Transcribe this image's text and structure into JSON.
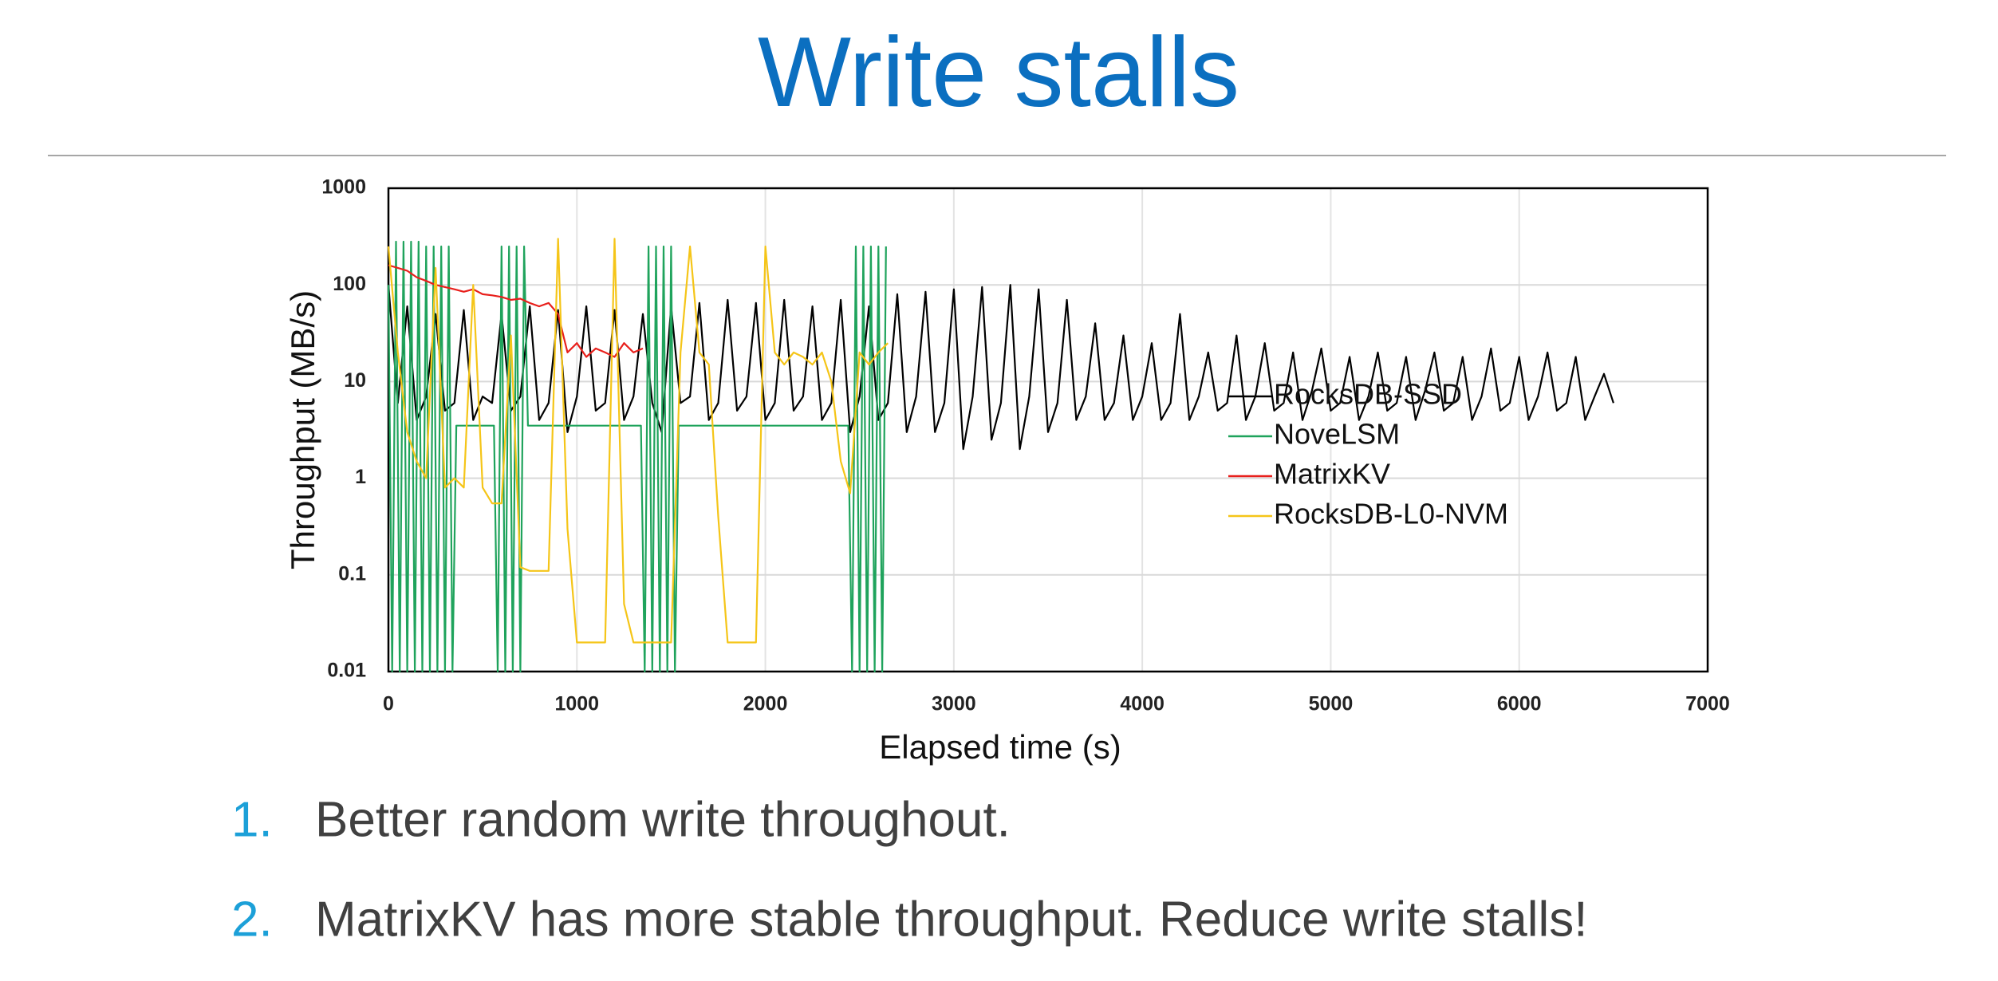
{
  "slide_title": "Write stalls",
  "chart_data": {
    "type": "line",
    "x_label": "Elapsed time (s)",
    "y_label": "Throughput (MB/s)",
    "log_y": true,
    "grid": true,
    "legend": "lower right",
    "xlim": [
      0,
      7000
    ],
    "xticks": [
      0,
      1000,
      2000,
      3000,
      4000,
      5000,
      6000,
      7000
    ],
    "ylim": [
      0.01,
      1000
    ],
    "yticks": [
      0.01,
      0.1,
      1,
      10,
      100,
      1000
    ],
    "series": [
      {
        "name": "RocksDB-SSD",
        "color": "#000000",
        "x": [
          0,
          50,
          100,
          150,
          200,
          250,
          300,
          350,
          400,
          450,
          500,
          550,
          600,
          650,
          700,
          750,
          800,
          850,
          900,
          950,
          1000,
          1050,
          1100,
          1150,
          1200,
          1250,
          1300,
          1350,
          1400,
          1450,
          1500,
          1550,
          1600,
          1650,
          1700,
          1750,
          1800,
          1850,
          1900,
          1950,
          2000,
          2050,
          2100,
          2150,
          2200,
          2250,
          2300,
          2350,
          2400,
          2450,
          2500,
          2550,
          2600,
          2650,
          2700,
          2750,
          2800,
          2850,
          2900,
          2950,
          3000,
          3050,
          3100,
          3150,
          3200,
          3250,
          3300,
          3350,
          3400,
          3450,
          3500,
          3550,
          3600,
          3650,
          3700,
          3750,
          3800,
          3850,
          3900,
          3950,
          4000,
          4050,
          4100,
          4150,
          4200,
          4250,
          4300,
          4350,
          4400,
          4450,
          4500,
          4550,
          4600,
          4650,
          4700,
          4750,
          4800,
          4850,
          4900,
          4950,
          5000,
          5050,
          5100,
          5150,
          5200,
          5250,
          5300,
          5350,
          5400,
          5450,
          5500,
          5550,
          5600,
          5650,
          5700,
          5750,
          5800,
          5850,
          5900,
          5950,
          6000,
          6050,
          6100,
          6150,
          6200,
          6250,
          6300,
          6350,
          6400,
          6450,
          6500
        ],
        "values": [
          100,
          6,
          60,
          4,
          7,
          50,
          5,
          6,
          55,
          4,
          7,
          6,
          50,
          5,
          7,
          60,
          4,
          6,
          55,
          3,
          7,
          60,
          5,
          6,
          55,
          4,
          7,
          50,
          6,
          3,
          60,
          6,
          7,
          65,
          4,
          6,
          70,
          5,
          7,
          65,
          4,
          6,
          70,
          5,
          7,
          60,
          4,
          6,
          70,
          3,
          7,
          60,
          4,
          6,
          80,
          3,
          7,
          85,
          3,
          6,
          90,
          2,
          7,
          95,
          2.5,
          6,
          100,
          2,
          7,
          90,
          3,
          6,
          70,
          4,
          7,
          40,
          4,
          6,
          30,
          4,
          7,
          25,
          4,
          6,
          50,
          4,
          7,
          20,
          5,
          6,
          30,
          4,
          7,
          25,
          5,
          6,
          20,
          4,
          8,
          22,
          5,
          6,
          18,
          4,
          7,
          20,
          5,
          6,
          18,
          4,
          8,
          20,
          5,
          6,
          18,
          4,
          7,
          22,
          5,
          6,
          18,
          4,
          7,
          20,
          5,
          6,
          18,
          4,
          7,
          12,
          6
        ]
      },
      {
        "name": "NoveLSM",
        "color": "#1fa35c",
        "x": [
          0,
          20,
          40,
          60,
          80,
          100,
          120,
          140,
          160,
          180,
          200,
          220,
          240,
          260,
          280,
          300,
          320,
          340,
          360,
          560,
          580,
          600,
          620,
          640,
          660,
          680,
          700,
          720,
          740,
          1340,
          1360,
          1380,
          1400,
          1420,
          1440,
          1460,
          1480,
          1500,
          1520,
          1540,
          2440,
          2460,
          2480,
          2500,
          2520,
          2540,
          2560,
          2580,
          2600,
          2620,
          2640
        ],
        "values": [
          100,
          0.01,
          280,
          0.01,
          280,
          0.01,
          280,
          0.01,
          280,
          0.01,
          250,
          0.01,
          250,
          0.01,
          250,
          0.01,
          250,
          0.01,
          3.5,
          3.5,
          0.01,
          250,
          0.01,
          250,
          0.01,
          250,
          0.01,
          250,
          3.5,
          3.5,
          0.01,
          250,
          0.01,
          250,
          0.01,
          250,
          0.01,
          250,
          0.01,
          3.5,
          3.5,
          0.01,
          250,
          0.01,
          250,
          0.01,
          250,
          0.01,
          250,
          0.01,
          250
        ]
      },
      {
        "name": "MatrixKV",
        "color": "#e8201c",
        "x": [
          0,
          50,
          100,
          150,
          200,
          250,
          300,
          350,
          400,
          450,
          500,
          550,
          600,
          650,
          700,
          750,
          800,
          850,
          900,
          950,
          1000,
          1050,
          1100,
          1150,
          1200,
          1250,
          1300,
          1350
        ],
        "values": [
          160,
          150,
          140,
          120,
          110,
          100,
          95,
          90,
          85,
          90,
          80,
          78,
          75,
          70,
          72,
          65,
          60,
          65,
          50,
          20,
          25,
          18,
          22,
          20,
          18,
          25,
          20,
          22
        ]
      },
      {
        "name": "RocksDB-L0-NVM",
        "color": "#f5c518",
        "x": [
          0,
          50,
          100,
          150,
          200,
          250,
          300,
          350,
          400,
          450,
          500,
          550,
          600,
          650,
          700,
          750,
          800,
          850,
          900,
          950,
          1000,
          1050,
          1100,
          1150,
          1200,
          1250,
          1300,
          1350,
          1400,
          1450,
          1500,
          1550,
          1600,
          1650,
          1700,
          1750,
          1800,
          1850,
          1900,
          1950,
          2000,
          2050,
          2100,
          2150,
          2200,
          2250,
          2300,
          2350,
          2400,
          2450,
          2500,
          2550,
          2600,
          2650
        ],
        "values": [
          250,
          20,
          3,
          1.5,
          1,
          150,
          0.8,
          1,
          0.8,
          100,
          0.8,
          0.55,
          0.55,
          30,
          0.12,
          0.11,
          0.11,
          0.11,
          300,
          0.3,
          0.02,
          0.02,
          0.02,
          0.02,
          300,
          0.05,
          0.02,
          0.02,
          0.02,
          0.02,
          0.02,
          20,
          250,
          20,
          15,
          0.4,
          0.02,
          0.02,
          0.02,
          0.02,
          250,
          20,
          15,
          20,
          18,
          15,
          20,
          10,
          1.5,
          0.7,
          20,
          15,
          20,
          25
        ]
      }
    ]
  },
  "bullets": [
    {
      "marker": "1.",
      "text": "Better random write throughout."
    },
    {
      "marker": "2.",
      "text": "MatrixKV has more stable throughput. Reduce write stalls!"
    }
  ]
}
